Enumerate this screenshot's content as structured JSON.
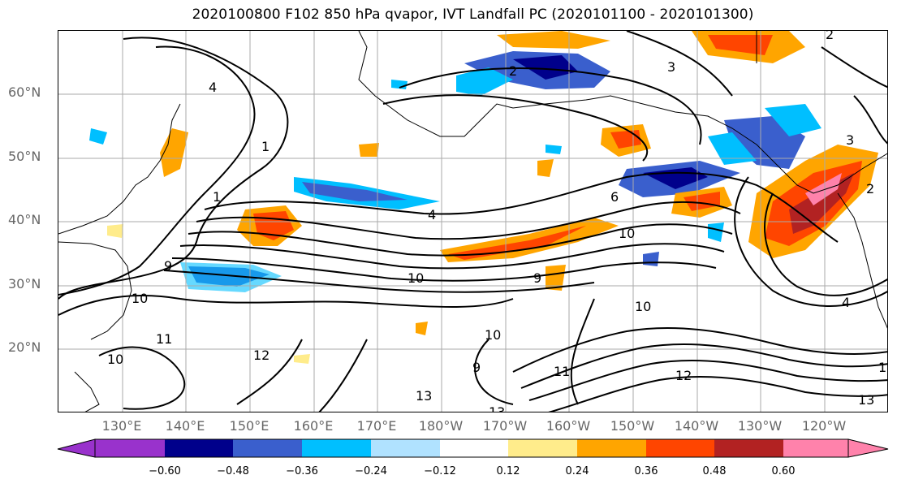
{
  "title": "2020100800 F102 850 hPa qvapor, IVT Landfall PC (2020101100 - 2020101300)",
  "map": {
    "lat_labels": [
      "60°N",
      "50°N",
      "40°N",
      "30°N",
      "20°N"
    ],
    "lon_labels": [
      "130°E",
      "140°E",
      "150°E",
      "160°E",
      "170°E",
      "180°W",
      "170°W",
      "160°W",
      "150°W",
      "140°W",
      "130°W",
      "120°W"
    ],
    "contour_labels": [
      "4",
      "1",
      "2",
      "3",
      "4",
      "6",
      "1",
      "10",
      "9",
      "10",
      "9",
      "10",
      "10",
      "11",
      "12",
      "13",
      "13",
      "10",
      "9",
      "10",
      "11",
      "12",
      "13",
      "2",
      "3",
      "2",
      "1",
      "4"
    ]
  },
  "colorbar": {
    "ticks": [
      "−0.60",
      "−0.48",
      "−0.36",
      "−0.24",
      "−0.12",
      "0.12",
      "0.24",
      "0.36",
      "0.48",
      "0.60"
    ],
    "colors": {
      "lt_minus_060": "#9932cc",
      "m060_m048": "#00008b",
      "m048_m036": "#3a5fcd",
      "m036_m024": "#00bfff",
      "m024_m012": "#b0e2ff",
      "m012_p012": "#ffffff",
      "p012_p024": "#ffec8b",
      "p024_p036": "#ffa500",
      "p036_p048": "#ff4500",
      "p048_p060": "#b22222",
      "gt_060": "#ff82ab"
    }
  }
}
